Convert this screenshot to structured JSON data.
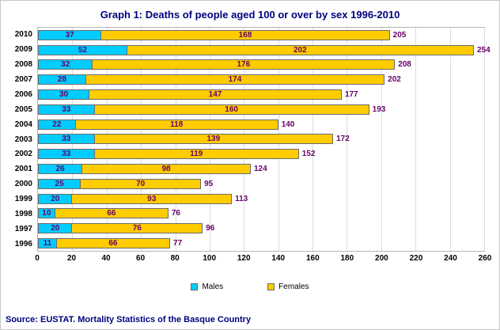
{
  "title": "Graph 1: Deaths of people aged 100 or over by sex 1996-2010",
  "source": "Source: EUSTAT. Mortality Statistics of the Basque Country",
  "colors": {
    "males": "#00CCFF",
    "females": "#FFCC00",
    "value_label": "#660066",
    "title": "#000080",
    "source": "#000080",
    "gridline": "#dcdcdc"
  },
  "chart_data": {
    "type": "bar",
    "orientation": "horizontal",
    "stacked": true,
    "title": "Graph 1: Deaths of people aged 100 or over by sex 1996-2010",
    "categories": [
      "2010",
      "2009",
      "2008",
      "2007",
      "2006",
      "2005",
      "2004",
      "2003",
      "2002",
      "2001",
      "2000",
      "1999",
      "1998",
      "1997",
      "1996"
    ],
    "series": [
      {
        "name": "Males",
        "color": "#00CCFF",
        "values": [
          37,
          52,
          32,
          28,
          30,
          33,
          22,
          33,
          33,
          26,
          25,
          20,
          10,
          20,
          11
        ]
      },
      {
        "name": "Females",
        "color": "#FFCC00",
        "values": [
          168,
          202,
          176,
          174,
          147,
          160,
          118,
          139,
          119,
          98,
          70,
          93,
          66,
          76,
          66
        ]
      }
    ],
    "totals": [
      205,
      254,
      208,
      202,
      177,
      193,
      140,
      172,
      152,
      124,
      95,
      113,
      76,
      96,
      77
    ],
    "xlim": [
      0,
      260
    ],
    "xticks": [
      0,
      20,
      40,
      60,
      80,
      100,
      120,
      140,
      160,
      180,
      200,
      220,
      240,
      260
    ],
    "grid": true,
    "legend_position": "bottom"
  }
}
